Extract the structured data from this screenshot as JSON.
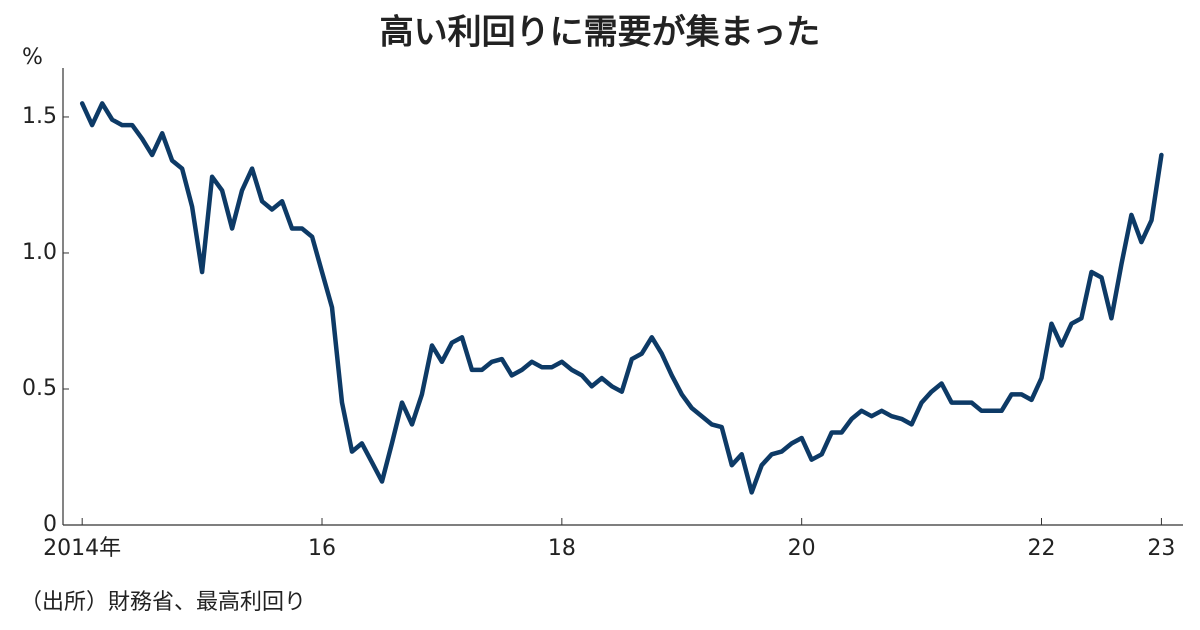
{
  "chart_data": {
    "type": "line",
    "title": "高い利回りに需要が集まった",
    "y_label": "%",
    "note": "（出所）財務省、最高利回り",
    "x": [
      2014,
      2014.083,
      2014.167,
      2014.25,
      2014.333,
      2014.417,
      2014.5,
      2014.583,
      2014.667,
      2014.75,
      2014.833,
      2014.917,
      2015,
      2015.083,
      2015.167,
      2015.25,
      2015.333,
      2015.417,
      2015.5,
      2015.583,
      2015.667,
      2015.75,
      2015.833,
      2015.917,
      2016,
      2016.083,
      2016.167,
      2016.25,
      2016.333,
      2016.417,
      2016.5,
      2016.583,
      2016.667,
      2016.75,
      2016.833,
      2016.917,
      2017,
      2017.083,
      2017.167,
      2017.25,
      2017.333,
      2017.417,
      2017.5,
      2017.583,
      2017.667,
      2017.75,
      2017.833,
      2017.917,
      2018,
      2018.083,
      2018.167,
      2018.25,
      2018.333,
      2018.417,
      2018.5,
      2018.583,
      2018.667,
      2018.75,
      2018.833,
      2018.917,
      2019,
      2019.083,
      2019.167,
      2019.25,
      2019.333,
      2019.417,
      2019.5,
      2019.583,
      2019.667,
      2019.75,
      2019.833,
      2019.917,
      2020,
      2020.083,
      2020.167,
      2020.25,
      2020.333,
      2020.417,
      2020.5,
      2020.583,
      2020.667,
      2020.75,
      2020.833,
      2020.917,
      2021,
      2021.083,
      2021.167,
      2021.25,
      2021.333,
      2021.417,
      2021.5,
      2021.583,
      2021.667,
      2021.75,
      2021.833,
      2021.917,
      2022,
      2022.083,
      2022.167,
      2022.25,
      2022.333,
      2022.417,
      2022.5,
      2022.583,
      2022.667,
      2022.75,
      2022.833,
      2022.917,
      2023
    ],
    "series": [
      {
        "color": "#0d3a66",
        "values": [
          1.55,
          1.47,
          1.55,
          1.49,
          1.47,
          1.47,
          1.42,
          1.36,
          1.44,
          1.34,
          1.31,
          1.17,
          0.93,
          1.28,
          1.23,
          1.09,
          1.23,
          1.31,
          1.19,
          1.16,
          1.19,
          1.09,
          1.09,
          1.06,
          0.93,
          0.8,
          0.45,
          0.27,
          0.3,
          0.23,
          0.16,
          0.3,
          0.45,
          0.37,
          0.48,
          0.66,
          0.6,
          0.67,
          0.69,
          0.57,
          0.57,
          0.6,
          0.61,
          0.55,
          0.57,
          0.6,
          0.58,
          0.58,
          0.6,
          0.57,
          0.55,
          0.51,
          0.54,
          0.51,
          0.49,
          0.61,
          0.63,
          0.69,
          0.63,
          0.55,
          0.48,
          0.43,
          0.4,
          0.37,
          0.36,
          0.22,
          0.26,
          0.12,
          0.22,
          0.26,
          0.27,
          0.3,
          0.32,
          0.24,
          0.26,
          0.34,
          0.34,
          0.39,
          0.42,
          0.4,
          0.42,
          0.4,
          0.39,
          0.37,
          0.45,
          0.49,
          0.52,
          0.45,
          0.45,
          0.45,
          0.42,
          0.42,
          0.42,
          0.48,
          0.48,
          0.46,
          0.54,
          0.74,
          0.66,
          0.74,
          0.76,
          0.93,
          0.91,
          0.76,
          0.96,
          1.14,
          1.04,
          1.12,
          1.36
        ]
      }
    ],
    "xlim": [
      2013.84,
      2023.18
    ],
    "ylim": [
      0,
      1.68
    ],
    "xticks": [
      {
        "value": 2014,
        "label": "2014年"
      },
      {
        "value": 2016,
        "label": "16"
      },
      {
        "value": 2018,
        "label": "18"
      },
      {
        "value": 2020,
        "label": "20"
      },
      {
        "value": 2022,
        "label": "22"
      },
      {
        "value": 2023,
        "label": "23"
      }
    ],
    "yticks": [
      0,
      0.5,
      {
        "value": 1,
        "label": "1.0"
      },
      1.5
    ]
  }
}
